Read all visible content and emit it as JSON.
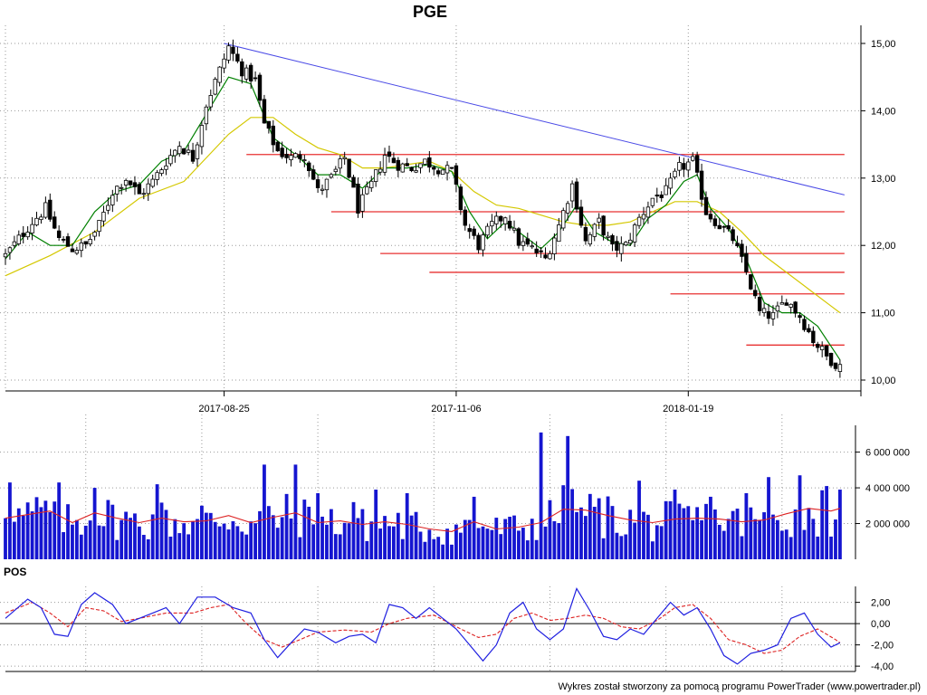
{
  "chart_data": [
    {
      "type": "candlestick",
      "title": "PGE",
      "ylim": [
        10.0,
        15.0
      ],
      "y_ticks": [
        "15,00",
        "14,00",
        "13,00",
        "12,00",
        "11,00",
        "10,00"
      ],
      "y_tick_values": [
        15,
        14,
        13,
        12,
        11,
        10
      ],
      "x_ticks": [
        "2017-08-25",
        "2017-11-06",
        "2018-01-19"
      ],
      "x_tick_sessions": [
        49,
        101,
        153
      ],
      "sessions": 188,
      "close_path": [
        [
          0,
          11.85
        ],
        [
          3,
          12.1
        ],
        [
          6,
          12.35
        ],
        [
          9,
          12.55
        ],
        [
          12,
          12.1
        ],
        [
          15,
          11.95
        ],
        [
          18,
          12.0
        ],
        [
          21,
          12.3
        ],
        [
          24,
          12.8
        ],
        [
          27,
          13.0
        ],
        [
          30,
          12.75
        ],
        [
          33,
          12.95
        ],
        [
          36,
          13.25
        ],
        [
          39,
          13.5
        ],
        [
          42,
          13.3
        ],
        [
          45,
          14.1
        ],
        [
          48,
          14.6
        ],
        [
          50,
          14.95
        ],
        [
          53,
          14.6
        ],
        [
          56,
          14.45
        ],
        [
          58,
          13.8
        ],
        [
          61,
          13.4
        ],
        [
          64,
          13.3
        ],
        [
          67,
          13.35
        ],
        [
          70,
          12.8
        ],
        [
          73,
          13.0
        ],
        [
          76,
          13.3
        ],
        [
          79,
          12.55
        ],
        [
          82,
          12.9
        ],
        [
          85,
          13.35
        ],
        [
          88,
          13.2
        ],
        [
          91,
          13.15
        ],
        [
          94,
          13.25
        ],
        [
          97,
          13.15
        ],
        [
          100,
          13.1
        ],
        [
          103,
          12.3
        ],
        [
          106,
          12.0
        ],
        [
          109,
          12.3
        ],
        [
          112,
          12.45
        ],
        [
          115,
          12.05
        ],
        [
          118,
          11.95
        ],
        [
          121,
          11.8
        ],
        [
          124,
          12.3
        ],
        [
          127,
          12.9
        ],
        [
          130,
          12.05
        ],
        [
          133,
          12.35
        ],
        [
          136,
          11.95
        ],
        [
          139,
          12.0
        ],
        [
          142,
          12.4
        ],
        [
          145,
          12.7
        ],
        [
          148,
          12.8
        ],
        [
          151,
          13.15
        ],
        [
          154,
          13.25
        ],
        [
          157,
          12.5
        ],
        [
          160,
          12.3
        ],
        [
          163,
          12.1
        ],
        [
          166,
          11.6
        ],
        [
          169,
          11.0
        ],
        [
          172,
          10.95
        ],
        [
          175,
          11.2
        ],
        [
          178,
          10.95
        ],
        [
          181,
          10.6
        ],
        [
          184,
          10.35
        ],
        [
          187,
          10.2
        ]
      ],
      "ma_slow": [
        [
          0,
          11.55
        ],
        [
          10,
          11.85
        ],
        [
          20,
          12.2
        ],
        [
          30,
          12.7
        ],
        [
          40,
          12.95
        ],
        [
          45,
          13.3
        ],
        [
          50,
          13.65
        ],
        [
          55,
          13.9
        ],
        [
          60,
          13.9
        ],
        [
          65,
          13.65
        ],
        [
          70,
          13.45
        ],
        [
          75,
          13.35
        ],
        [
          80,
          13.15
        ],
        [
          85,
          13.15
        ],
        [
          90,
          13.2
        ],
        [
          95,
          13.25
        ],
        [
          100,
          13.1
        ],
        [
          105,
          12.8
        ],
        [
          110,
          12.6
        ],
        [
          115,
          12.55
        ],
        [
          120,
          12.45
        ],
        [
          125,
          12.35
        ],
        [
          130,
          12.3
        ],
        [
          135,
          12.3
        ],
        [
          140,
          12.35
        ],
        [
          145,
          12.5
        ],
        [
          150,
          12.65
        ],
        [
          155,
          12.65
        ],
        [
          160,
          12.5
        ],
        [
          165,
          12.2
        ],
        [
          170,
          11.85
        ],
        [
          175,
          11.6
        ],
        [
          180,
          11.35
        ],
        [
          185,
          11.1
        ],
        [
          187,
          11.0
        ]
      ],
      "ma_fast": [
        [
          0,
          11.8
        ],
        [
          5,
          12.2
        ],
        [
          10,
          12.0
        ],
        [
          15,
          12.0
        ],
        [
          20,
          12.5
        ],
        [
          25,
          12.8
        ],
        [
          30,
          12.9
        ],
        [
          35,
          13.25
        ],
        [
          40,
          13.4
        ],
        [
          45,
          13.95
        ],
        [
          50,
          14.5
        ],
        [
          55,
          14.4
        ],
        [
          60,
          13.6
        ],
        [
          65,
          13.35
        ],
        [
          70,
          13.05
        ],
        [
          75,
          13.05
        ],
        [
          80,
          12.85
        ],
        [
          85,
          13.15
        ],
        [
          90,
          13.15
        ],
        [
          95,
          13.2
        ],
        [
          100,
          13.1
        ],
        [
          104,
          12.5
        ],
        [
          108,
          12.1
        ],
        [
          112,
          12.35
        ],
        [
          116,
          12.15
        ],
        [
          120,
          11.95
        ],
        [
          124,
          12.2
        ],
        [
          128,
          12.6
        ],
        [
          132,
          12.2
        ],
        [
          136,
          12.05
        ],
        [
          140,
          12.0
        ],
        [
          144,
          12.4
        ],
        [
          148,
          12.6
        ],
        [
          152,
          12.95
        ],
        [
          155,
          13.05
        ],
        [
          158,
          12.55
        ],
        [
          162,
          12.25
        ],
        [
          166,
          11.8
        ],
        [
          170,
          11.15
        ],
        [
          174,
          11.0
        ],
        [
          178,
          11.0
        ],
        [
          182,
          10.8
        ],
        [
          186,
          10.4
        ],
        [
          187,
          10.3
        ]
      ],
      "trendline": [
        [
          49,
          15.0
        ],
        [
          188,
          12.75
        ]
      ],
      "support_resistance": [
        {
          "level": 13.35,
          "from": 54,
          "to": 188
        },
        {
          "level": 12.5,
          "from": 73,
          "to": 188
        },
        {
          "level": 11.88,
          "from": 84,
          "to": 188
        },
        {
          "level": 11.6,
          "from": 95,
          "to": 188
        },
        {
          "level": 11.28,
          "from": 149,
          "to": 188
        },
        {
          "level": 10.52,
          "from": 166,
          "to": 188
        }
      ],
      "colors": {
        "ma_fast": "#008000",
        "ma_slow": "#d4c800",
        "trendline": "#4a4ae6",
        "support_resistance": "#e83030",
        "candle": "#000000"
      }
    },
    {
      "type": "bar",
      "series_name": "volume",
      "ylim": [
        0,
        7500000
      ],
      "y_ticks": [
        "6 000 000",
        "4 000 000",
        "2 000 000"
      ],
      "y_tick_values": [
        6000000,
        4000000,
        2000000
      ],
      "volume_ma": [
        [
          0,
          2300000
        ],
        [
          10,
          2700000
        ],
        [
          15,
          2050000
        ],
        [
          20,
          2600000
        ],
        [
          25,
          2300000
        ],
        [
          30,
          2050000
        ],
        [
          35,
          2300000
        ],
        [
          40,
          2100000
        ],
        [
          45,
          2150000
        ],
        [
          50,
          2450000
        ],
        [
          55,
          2050000
        ],
        [
          60,
          2350000
        ],
        [
          65,
          2600000
        ],
        [
          70,
          2050000
        ],
        [
          75,
          2150000
        ],
        [
          80,
          1950000
        ],
        [
          85,
          2100000
        ],
        [
          90,
          1950000
        ],
        [
          95,
          1700000
        ],
        [
          100,
          1550000
        ],
        [
          105,
          2100000
        ],
        [
          110,
          1700000
        ],
        [
          115,
          1800000
        ],
        [
          120,
          2050000
        ],
        [
          125,
          2800000
        ],
        [
          130,
          2750000
        ],
        [
          135,
          2450000
        ],
        [
          140,
          2200000
        ],
        [
          145,
          2050000
        ],
        [
          150,
          2250000
        ],
        [
          155,
          2300000
        ],
        [
          160,
          2250000
        ],
        [
          165,
          2100000
        ],
        [
          170,
          2200000
        ],
        [
          175,
          2550000
        ],
        [
          180,
          2850000
        ],
        [
          185,
          2700000
        ],
        [
          187,
          2850000
        ]
      ],
      "colors": {
        "bars": "#1515d0",
        "ma": "#dd2222"
      }
    },
    {
      "type": "line",
      "title": "POS",
      "ylim": [
        -4.5,
        3.5
      ],
      "y_ticks": [
        "2,00",
        "0,00",
        "-2,00",
        "-4,00"
      ],
      "y_tick_values": [
        2,
        0,
        -2,
        -4
      ],
      "oscillator": [
        [
          0,
          0.5
        ],
        [
          5,
          2.3
        ],
        [
          8,
          1.5
        ],
        [
          11,
          -1.0
        ],
        [
          14,
          -1.2
        ],
        [
          17,
          1.8
        ],
        [
          20,
          2.9
        ],
        [
          24,
          1.8
        ],
        [
          27,
          0.0
        ],
        [
          30,
          0.5
        ],
        [
          33,
          1.0
        ],
        [
          36,
          1.5
        ],
        [
          39,
          0.0
        ],
        [
          43,
          2.5
        ],
        [
          47,
          2.5
        ],
        [
          51,
          1.5
        ],
        [
          55,
          1.0
        ],
        [
          58,
          -1.5
        ],
        [
          61,
          -3.2
        ],
        [
          64,
          -1.8
        ],
        [
          67,
          -0.5
        ],
        [
          70,
          -0.8
        ],
        [
          74,
          -1.8
        ],
        [
          77,
          -1.2
        ],
        [
          80,
          -1.0
        ],
        [
          83,
          -1.8
        ],
        [
          86,
          1.8
        ],
        [
          89,
          1.5
        ],
        [
          92,
          0.5
        ],
        [
          95,
          1.5
        ],
        [
          98,
          0.5
        ],
        [
          101,
          -0.5
        ],
        [
          104,
          -2.0
        ],
        [
          107,
          -3.5
        ],
        [
          110,
          -2.0
        ],
        [
          113,
          1.0
        ],
        [
          116,
          2.0
        ],
        [
          119,
          -0.5
        ],
        [
          122,
          -1.5
        ],
        [
          125,
          -0.5
        ],
        [
          128,
          3.3
        ],
        [
          131,
          1.2
        ],
        [
          134,
          -1.2
        ],
        [
          137,
          -1.5
        ],
        [
          140,
          -0.5
        ],
        [
          143,
          -1.0
        ],
        [
          146,
          0.5
        ],
        [
          149,
          2.0
        ],
        [
          152,
          0.8
        ],
        [
          155,
          1.5
        ],
        [
          158,
          -0.5
        ],
        [
          161,
          -3.0
        ],
        [
          164,
          -3.8
        ],
        [
          167,
          -2.8
        ],
        [
          170,
          -2.5
        ],
        [
          173,
          -2.0
        ],
        [
          176,
          0.5
        ],
        [
          179,
          1.0
        ],
        [
          182,
          -1.0
        ],
        [
          185,
          -2.2
        ],
        [
          187,
          -1.8
        ]
      ],
      "signal": [
        [
          0,
          1.0
        ],
        [
          6,
          2.0
        ],
        [
          10,
          1.0
        ],
        [
          14,
          -0.3
        ],
        [
          18,
          1.5
        ],
        [
          22,
          1.2
        ],
        [
          26,
          0.2
        ],
        [
          30,
          0.5
        ],
        [
          36,
          1.0
        ],
        [
          42,
          1.0
        ],
        [
          46,
          1.5
        ],
        [
          50,
          1.8
        ],
        [
          54,
          0.0
        ],
        [
          58,
          -1.5
        ],
        [
          62,
          -2.2
        ],
        [
          66,
          -1.5
        ],
        [
          70,
          -0.8
        ],
        [
          76,
          -0.6
        ],
        [
          82,
          -0.8
        ],
        [
          86,
          0.0
        ],
        [
          90,
          0.5
        ],
        [
          96,
          0.8
        ],
        [
          102,
          -0.5
        ],
        [
          106,
          -1.3
        ],
        [
          110,
          -1.0
        ],
        [
          114,
          0.5
        ],
        [
          118,
          1.0
        ],
        [
          122,
          0.3
        ],
        [
          126,
          0.5
        ],
        [
          130,
          0.8
        ],
        [
          134,
          0.5
        ],
        [
          138,
          -0.3
        ],
        [
          142,
          -0.5
        ],
        [
          146,
          0.3
        ],
        [
          150,
          1.5
        ],
        [
          154,
          1.8
        ],
        [
          158,
          0.5
        ],
        [
          162,
          -1.5
        ],
        [
          166,
          -2.0
        ],
        [
          170,
          -2.8
        ],
        [
          174,
          -2.5
        ],
        [
          178,
          -1.2
        ],
        [
          182,
          -0.5
        ],
        [
          186,
          -1.5
        ],
        [
          187,
          -1.8
        ]
      ],
      "colors": {
        "oscillator": "#2020e0",
        "signal": "#dd2222",
        "zero": "#000000"
      }
    }
  ],
  "footer": {
    "credit": "Wykres został stworzony za pomocą programu PowerTrader (www.powertrader.pl)"
  }
}
